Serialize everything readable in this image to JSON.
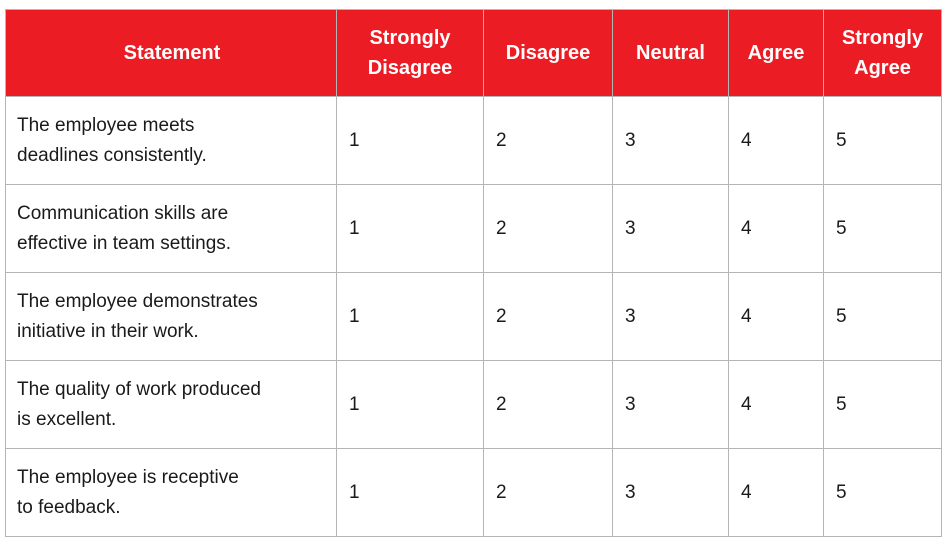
{
  "table": {
    "headers": {
      "statement": "Statement",
      "strongly_disagree_line1": "Strongly",
      "strongly_disagree_line2": "Disagree",
      "disagree": "Disagree",
      "neutral": "Neutral",
      "agree": "Agree",
      "strongly_agree_line1": "Strongly",
      "strongly_agree_line2": "Agree"
    },
    "colors": {
      "header_background": "#ec1c24",
      "header_text": "#ffffff",
      "grid_line": "#b5b5b5"
    },
    "rows": [
      {
        "statement_line1": "The employee meets",
        "statement_line2": "deadlines consistently.",
        "ratings": [
          "1",
          "2",
          "3",
          "4",
          "5"
        ]
      },
      {
        "statement_line1": "Communication skills are",
        "statement_line2": "effective in team settings.",
        "ratings": [
          "1",
          "2",
          "3",
          "4",
          "5"
        ]
      },
      {
        "statement_line1": "The employee demonstrates",
        "statement_line2": "initiative in their work.",
        "ratings": [
          "1",
          "2",
          "3",
          "4",
          "5"
        ]
      },
      {
        "statement_line1": "The quality of work produced",
        "statement_line2": "is excellent.",
        "ratings": [
          "1",
          "2",
          "3",
          "4",
          "5"
        ]
      },
      {
        "statement_line1": "The employee is receptive",
        "statement_line2": "to feedback.",
        "ratings": [
          "1",
          "2",
          "3",
          "4",
          "5"
        ]
      }
    ]
  }
}
